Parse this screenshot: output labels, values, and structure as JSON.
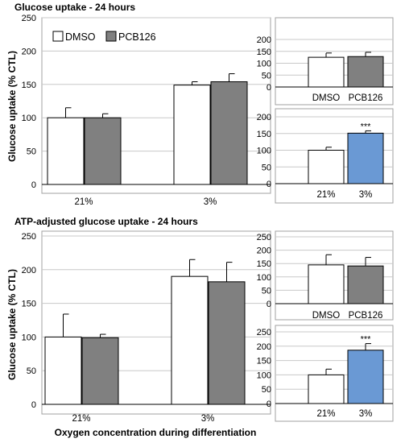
{
  "figure": {
    "ylabel": "Glucose uptake (% CTL)",
    "xlabel": "Oxygen concentration during differentiation"
  },
  "legend": {
    "items": [
      {
        "label": "DMSO",
        "color": "#ffffff"
      },
      {
        "label": "PCB126",
        "color": "#808080"
      }
    ],
    "placement": "top-left"
  },
  "colors": {
    "dmso": "#ffffff",
    "pcb126": "#808080",
    "highlight": "#6a99d4",
    "axis": "#000000",
    "grid": "#c8c8c8"
  },
  "chart_data": [
    {
      "id": "top-main",
      "type": "bar",
      "title": "Glucose uptake - 24 hours",
      "categories": [
        "21%",
        "3%"
      ],
      "series": [
        {
          "name": "DMSO",
          "values": [
            100,
            149
          ],
          "errors": [
            15,
            5
          ]
        },
        {
          "name": "PCB126",
          "values": [
            100,
            154
          ],
          "errors": [
            6,
            12
          ]
        }
      ],
      "ylim": [
        0,
        250
      ],
      "yticks": [
        0,
        50,
        100,
        150,
        200,
        250
      ],
      "grid": true
    },
    {
      "id": "top-inset-treatment",
      "type": "bar",
      "categories": [
        "DMSO",
        "PCB126"
      ],
      "values": [
        125,
        128
      ],
      "errors": [
        18,
        18
      ],
      "ylim": [
        0,
        200
      ],
      "yticks": [
        0,
        50,
        100,
        150,
        200
      ],
      "grid": true
    },
    {
      "id": "top-inset-oxygen",
      "type": "bar",
      "categories": [
        "21%",
        "3%"
      ],
      "values": [
        100,
        151
      ],
      "errors": [
        9,
        7
      ],
      "ylim": [
        0,
        200
      ],
      "yticks": [
        0,
        50,
        100,
        150,
        200
      ],
      "annotations": [
        {
          "category": "3%",
          "text": "***"
        }
      ],
      "grid": true
    },
    {
      "id": "bottom-main",
      "type": "bar",
      "title": "ATP-adjusted glucose uptake - 24 hours",
      "categories": [
        "21%",
        "3%"
      ],
      "series": [
        {
          "name": "DMSO",
          "values": [
            100,
            190
          ],
          "errors": [
            34,
            25
          ]
        },
        {
          "name": "PCB126",
          "values": [
            99,
            182
          ],
          "errors": [
            5,
            29
          ]
        }
      ],
      "ylim": [
        0,
        250
      ],
      "yticks": [
        0,
        50,
        100,
        150,
        200,
        250
      ],
      "grid": true
    },
    {
      "id": "bottom-inset-treatment",
      "type": "bar",
      "categories": [
        "DMSO",
        "PCB126"
      ],
      "values": [
        145,
        141
      ],
      "errors": [
        38,
        32
      ],
      "ylim": [
        0,
        250
      ],
      "yticks": [
        0,
        50,
        100,
        150,
        200,
        250
      ],
      "grid": true
    },
    {
      "id": "bottom-inset-oxygen",
      "type": "bar",
      "categories": [
        "21%",
        "3%"
      ],
      "values": [
        100,
        186
      ],
      "errors": [
        20,
        23
      ],
      "ylim": [
        0,
        250
      ],
      "yticks": [
        0,
        50,
        100,
        150,
        200,
        250
      ],
      "annotations": [
        {
          "category": "3%",
          "text": "***"
        }
      ],
      "grid": true
    }
  ]
}
